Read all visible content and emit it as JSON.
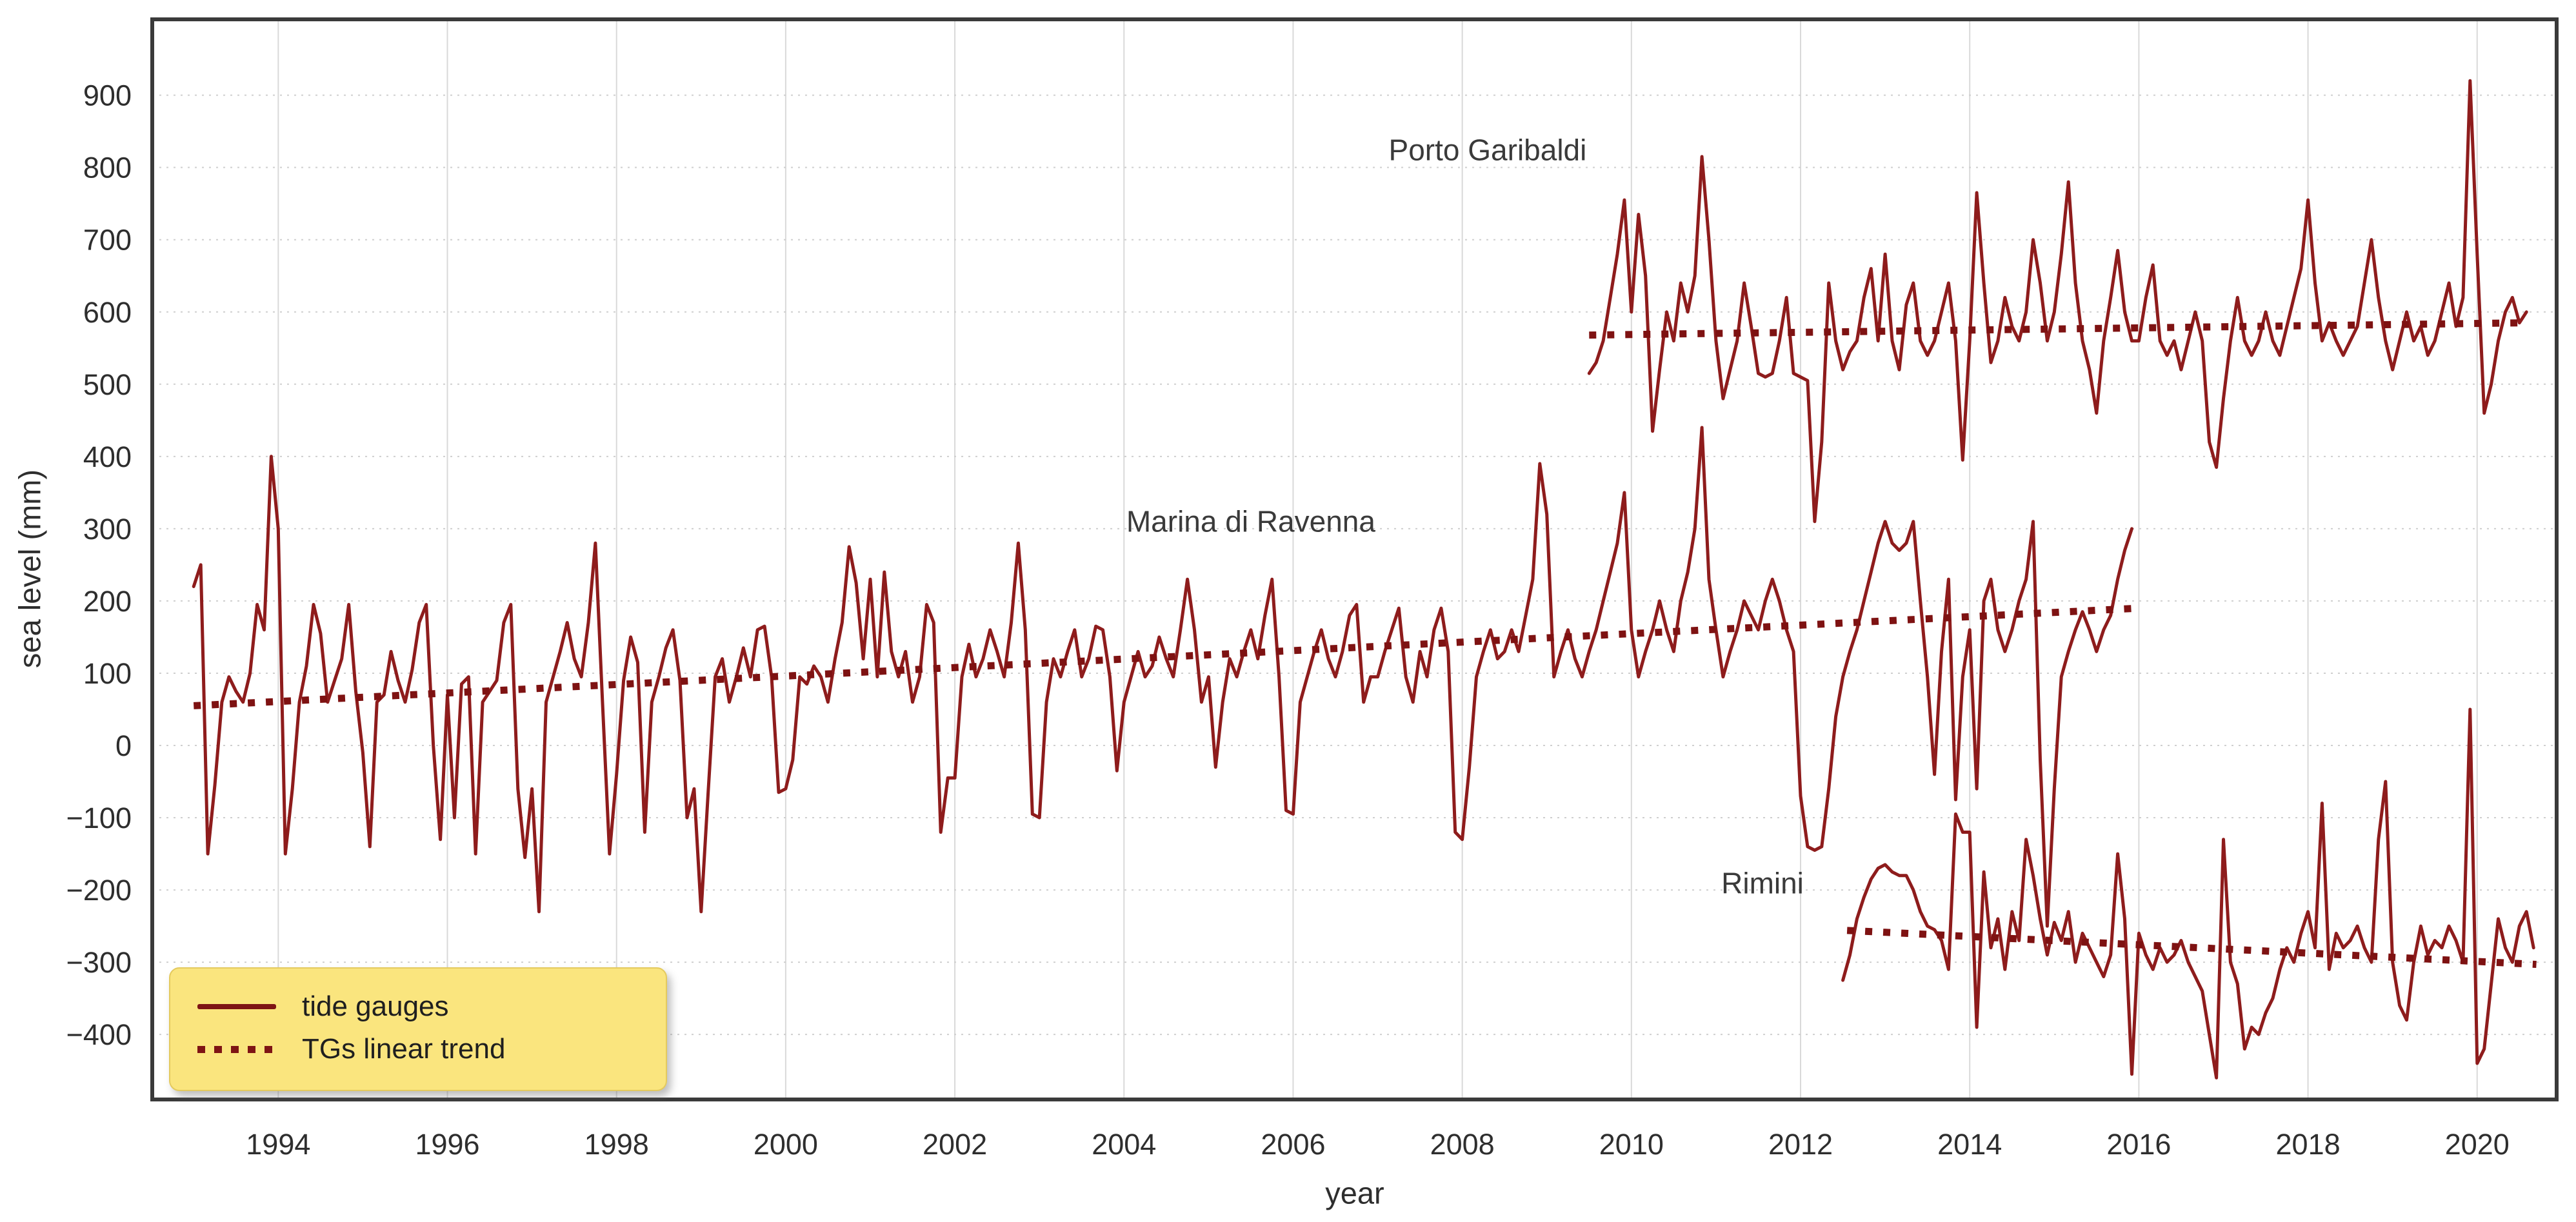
{
  "figure": {
    "x_axis_title": "year",
    "y_axis_title": "sea level (mm)"
  },
  "legend": {
    "entries": [
      {
        "label": "tide gauges",
        "style": "solid-line"
      },
      {
        "label": "TGs linear trend",
        "style": "dotted-line"
      }
    ],
    "background": "#FAE57E",
    "position": "lower left"
  },
  "chart_data": {
    "type": "line",
    "title": "",
    "xlabel": "year",
    "ylabel": "sea level (mm)",
    "xlim": [
      1992.51,
      2020.94
    ],
    "ylim": [
      -490,
      1005
    ],
    "grid": true,
    "colors": {
      "line": "#8E1C1C",
      "trend": "#7E1212",
      "grid_vertical": "#D9D9D9",
      "grid_horizontal": "#CFCFCF",
      "frame": "#3A3A3A",
      "tick_text": "#2E2E2E",
      "label_text": "#3A3A3A"
    },
    "x_ticks": [
      {
        "value": 1994,
        "label": "1994"
      },
      {
        "value": 1996,
        "label": "1996"
      },
      {
        "value": 1998,
        "label": "1998"
      },
      {
        "value": 2000,
        "label": "2000"
      },
      {
        "value": 2002,
        "label": "2002"
      },
      {
        "value": 2004,
        "label": "2004"
      },
      {
        "value": 2006,
        "label": "2006"
      },
      {
        "value": 2008,
        "label": "2008"
      },
      {
        "value": 2010,
        "label": "2010"
      },
      {
        "value": 2012,
        "label": "2012"
      },
      {
        "value": 2014,
        "label": "2014"
      },
      {
        "value": 2016,
        "label": "2016"
      },
      {
        "value": 2018,
        "label": "2018"
      },
      {
        "value": 2020,
        "label": "2020"
      }
    ],
    "y_ticks": [
      {
        "value": 900,
        "label": "900"
      },
      {
        "value": 800,
        "label": "800"
      },
      {
        "value": 700,
        "label": "700"
      },
      {
        "value": 600,
        "label": "600"
      },
      {
        "value": 500,
        "label": "500"
      },
      {
        "value": 400,
        "label": "400"
      },
      {
        "value": 300,
        "label": "300"
      },
      {
        "value": 200,
        "label": "200"
      },
      {
        "value": 100,
        "label": "100"
      },
      {
        "value": 0,
        "label": "0"
      },
      {
        "value": -100,
        "label": "−100"
      },
      {
        "value": -200,
        "label": "−200"
      },
      {
        "value": -300,
        "label": "−300"
      },
      {
        "value": -400,
        "label": "−400"
      }
    ],
    "series": [
      {
        "name": "Porto Garibaldi",
        "label_pos": {
          "year": 2008.3,
          "value": 810
        },
        "start_year": 2009.5,
        "step_years": 0.08333,
        "values": [
          515,
          530,
          560,
          620,
          680,
          755,
          600,
          735,
          650,
          435,
          520,
          600,
          560,
          640,
          600,
          650,
          815,
          700,
          560,
          480,
          520,
          560,
          640,
          580,
          515,
          510,
          515,
          560,
          620,
          515,
          510,
          505,
          310,
          420,
          640,
          560,
          520,
          545,
          560,
          620,
          660,
          560,
          680,
          560,
          520,
          610,
          640,
          560,
          540,
          560,
          600,
          640,
          560,
          395,
          560,
          765,
          640,
          530,
          560,
          620,
          580,
          560,
          600,
          700,
          640,
          560,
          600,
          680,
          780,
          640,
          560,
          520,
          460,
          560,
          620,
          685,
          600,
          560,
          560,
          620,
          665,
          560,
          540,
          560,
          520,
          560,
          600,
          560,
          420,
          385,
          480,
          560,
          620,
          560,
          540,
          560,
          600,
          560,
          540,
          580,
          620,
          660,
          755,
          640,
          560,
          585,
          560,
          540,
          560,
          580,
          640,
          700,
          620,
          560,
          520,
          560,
          600,
          560,
          580,
          540,
          560,
          600,
          640,
          580,
          620,
          920,
          680,
          460,
          500,
          560,
          600,
          620,
          585,
          600
        ],
        "trend": {
          "start": [
            2009.5,
            568
          ],
          "end": [
            2020.6,
            585
          ]
        }
      },
      {
        "name": "Marina di Ravenna",
        "label_pos": {
          "year": 2005.5,
          "value": 296
        },
        "start_year": 1993.0,
        "step_years": 0.08333,
        "values": [
          220,
          250,
          -150,
          -55,
          60,
          95,
          75,
          60,
          100,
          195,
          160,
          400,
          300,
          -150,
          -60,
          60,
          110,
          195,
          155,
          60,
          90,
          120,
          195,
          75,
          -10,
          -140,
          60,
          70,
          130,
          90,
          60,
          105,
          170,
          195,
          0,
          -130,
          70,
          -100,
          85,
          95,
          -150,
          60,
          75,
          90,
          170,
          195,
          -60,
          -155,
          -60,
          -230,
          60,
          95,
          130,
          170,
          120,
          95,
          170,
          280,
          60,
          -150,
          -40,
          90,
          150,
          115,
          -120,
          60,
          95,
          135,
          160,
          90,
          -100,
          -60,
          -230,
          -65,
          95,
          120,
          60,
          95,
          135,
          95,
          160,
          165,
          95,
          -65,
          -60,
          -20,
          95,
          85,
          110,
          95,
          60,
          120,
          170,
          275,
          225,
          120,
          230,
          95,
          240,
          130,
          95,
          130,
          60,
          95,
          195,
          170,
          -120,
          -45,
          -45,
          95,
          140,
          95,
          120,
          160,
          130,
          95,
          170,
          280,
          160,
          -95,
          -100,
          60,
          120,
          95,
          130,
          160,
          95,
          120,
          165,
          160,
          95,
          -35,
          60,
          95,
          130,
          95,
          110,
          150,
          120,
          95,
          160,
          230,
          160,
          60,
          95,
          -30,
          60,
          120,
          95,
          130,
          160,
          120,
          180,
          230,
          95,
          -90,
          -95,
          60,
          95,
          130,
          160,
          120,
          95,
          130,
          180,
          195,
          60,
          95,
          95,
          130,
          160,
          190,
          95,
          60,
          130,
          95,
          160,
          190,
          130,
          -120,
          -130,
          -30,
          95,
          130,
          160,
          120,
          130,
          160,
          130,
          180,
          230,
          390,
          320,
          95,
          130,
          160,
          120,
          95,
          130,
          160,
          200,
          240,
          280,
          350,
          160,
          95,
          130,
          160,
          200,
          160,
          130,
          200,
          240,
          300,
          440,
          230,
          160,
          95,
          130,
          160,
          200,
          180,
          160,
          200,
          230,
          200,
          160,
          130,
          -70,
          -140,
          -145,
          -140,
          -60,
          40,
          95,
          130,
          160,
          200,
          240,
          280,
          310,
          280,
          270,
          280,
          310,
          200,
          95,
          -40,
          130,
          230,
          -75,
          95,
          160,
          -60,
          200,
          230,
          160,
          130,
          160,
          200,
          230,
          310,
          -20,
          -250,
          -60,
          95,
          130,
          160,
          185,
          160,
          130,
          160,
          180,
          230,
          270,
          300
        ],
        "trend": {
          "start": [
            1993.0,
            55
          ],
          "end": [
            2016.0,
            190
          ]
        }
      },
      {
        "name": "Rimini",
        "label_pos": {
          "year": 2011.55,
          "value": -205
        },
        "start_year": 2012.5,
        "step_years": 0.08333,
        "values": [
          -325,
          -290,
          -240,
          -210,
          -185,
          -170,
          -165,
          -175,
          -180,
          -180,
          -200,
          -230,
          -250,
          -255,
          -270,
          -310,
          -95,
          -120,
          -120,
          -390,
          -175,
          -280,
          -240,
          -310,
          -230,
          -270,
          -130,
          -180,
          -240,
          -290,
          -245,
          -270,
          -230,
          -300,
          -260,
          -280,
          -300,
          -320,
          -290,
          -150,
          -240,
          -455,
          -260,
          -290,
          -310,
          -280,
          -300,
          -290,
          -270,
          -300,
          -320,
          -340,
          -400,
          -460,
          -130,
          -300,
          -330,
          -420,
          -390,
          -400,
          -370,
          -350,
          -310,
          -280,
          -300,
          -260,
          -230,
          -280,
          -80,
          -310,
          -260,
          -280,
          -270,
          -250,
          -280,
          -300,
          -130,
          -50,
          -300,
          -360,
          -380,
          -300,
          -250,
          -290,
          -270,
          -280,
          -250,
          -270,
          -300,
          50,
          -440,
          -420,
          -330,
          -240,
          -280,
          -300,
          -250,
          -230,
          -280
        ],
        "trend": {
          "start": [
            2012.55,
            -256
          ],
          "end": [
            2020.7,
            -303
          ]
        }
      }
    ]
  }
}
